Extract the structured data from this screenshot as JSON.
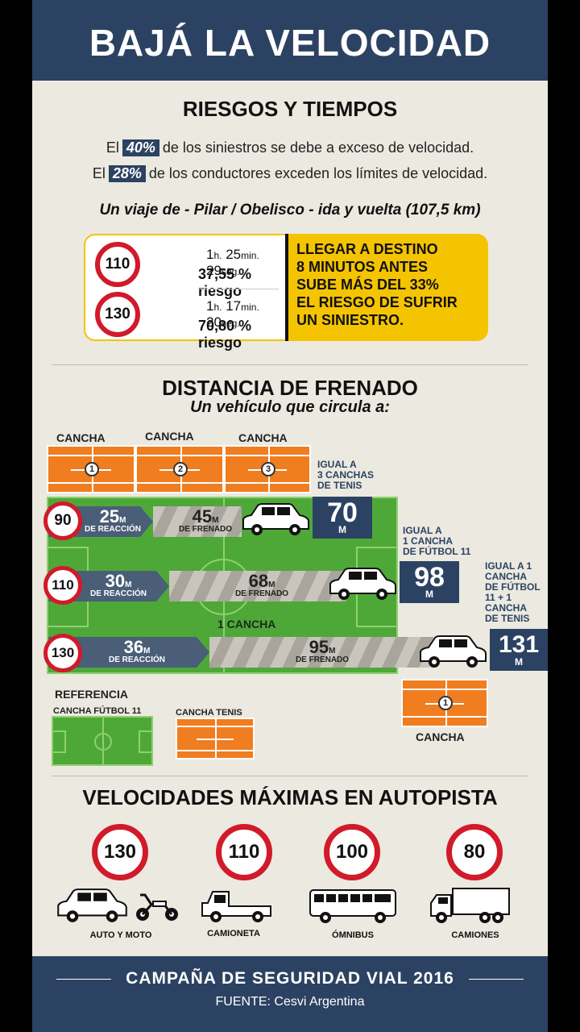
{
  "header": {
    "title": "BAJÁ LA VELOCIDAD"
  },
  "risks": {
    "title": "RIESGOS Y TIEMPOS",
    "stat1": {
      "pre": "El",
      "pct": "40%",
      "post": "de los siniestros se debe a exceso de velocidad."
    },
    "stat2": {
      "pre": "El",
      "pct": "28%",
      "post": "de los conductores exceden los límites de velocidad."
    },
    "trip": "Un viaje de - Pilar / Obelisco - ida y vuelta (107,5 km)",
    "rows": [
      {
        "speed": "110",
        "h": "1",
        "hu": "h.",
        "min": "25",
        "minu": "min.",
        "seg": "29",
        "segu": "seg.",
        "risk": "37,55 % riesgo"
      },
      {
        "speed": "130",
        "h": "1",
        "hu": "h.",
        "min": "17",
        "minu": "min.",
        "seg": "20",
        "segu": "seg.",
        "risk": "70,80 % riesgo"
      }
    ],
    "callout": [
      "LLEGAR A DESTINO",
      "8 MINUTOS ANTES",
      "SUBE MÁS DEL 33%",
      "EL RIESGO DE SUFRIR",
      "UN SINIESTRO."
    ]
  },
  "braking": {
    "title": "DISTANCIA DE FRENADO",
    "subtitle": "Un vehículo que circula a:",
    "court_label": "CANCHA",
    "court_nums": [
      "1",
      "2",
      "3"
    ],
    "field_label": "1 CANCHA",
    "rows": [
      {
        "speed": "90",
        "reaction": "25",
        "braking": "45",
        "total": "70",
        "unit": "M",
        "suffix": "M",
        "reaction_label": "DE REACCIÓN",
        "braking_label": "DE FRENADO",
        "note": [
          "IGUAL A",
          "3 CANCHAS",
          "DE TENIS"
        ]
      },
      {
        "speed": "110",
        "reaction": "30",
        "braking": "68",
        "total": "98",
        "unit": "M",
        "suffix": "M",
        "reaction_label": "DE REACCIÓN",
        "braking_label": "DE FRENADO",
        "note": [
          "IGUAL A",
          "1 CANCHA",
          "DE FÚTBOL 11"
        ]
      },
      {
        "speed": "130",
        "reaction": "36",
        "braking": "95",
        "total": "131",
        "unit": "M",
        "suffix": "M",
        "reaction_label": "DE REACCIÓN",
        "braking_label": "DE FRENADO",
        "note": [
          "IGUAL A 1",
          "CANCHA",
          "DE FÚTBOL",
          "11 + 1",
          "CANCHA",
          "DE TENIS"
        ]
      }
    ],
    "extra_court": {
      "num": "1",
      "label": "CANCHA"
    },
    "reference": {
      "title": "REFERENCIA",
      "football": "CANCHA FÚTBOL 11",
      "tennis": "CANCHA TENIS"
    }
  },
  "limits": {
    "title": "VELOCIDADES MÁXIMAS EN AUTOPISTA",
    "items": [
      {
        "speed": "130",
        "label": "AUTO Y  MOTO"
      },
      {
        "speed": "110",
        "label": "CAMIONETA"
      },
      {
        "speed": "100",
        "label": "ÓMNIBUS"
      },
      {
        "speed": "80",
        "label": "CAMIONES"
      }
    ]
  },
  "footer": {
    "title": "CAMPAÑA DE SEGURIDAD VIAL 2016",
    "source": "FUENTE: Cesvi Argentina"
  },
  "colors": {
    "navy": "#2c4262",
    "red": "#d11a2a",
    "yellow": "#f5c400",
    "orange": "#f07d20",
    "green": "#4ea838"
  }
}
